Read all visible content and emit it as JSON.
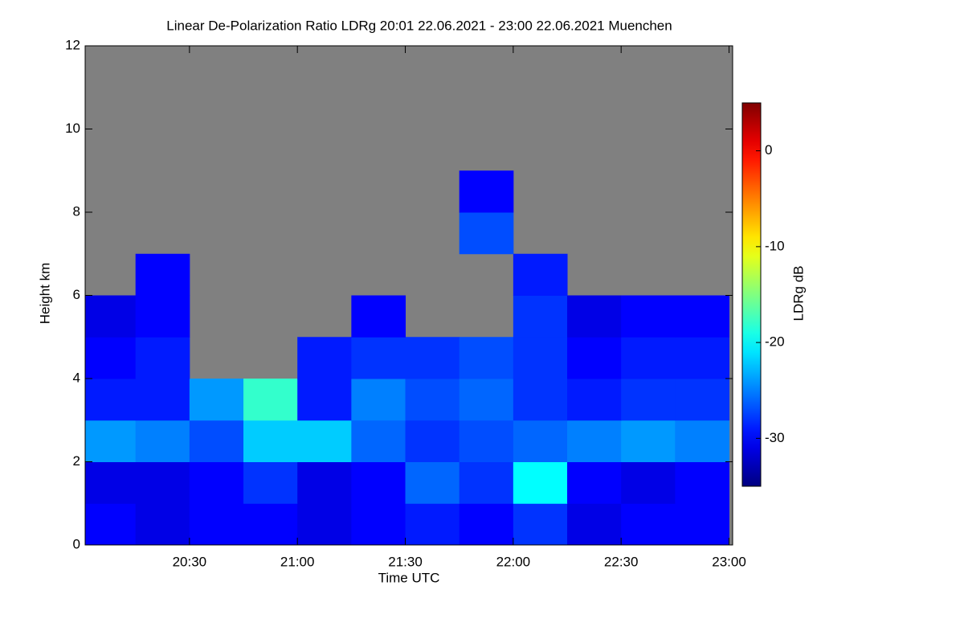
{
  "chart_data": {
    "type": "heatmap",
    "title": "Linear De-Polarization Ratio LDRg   20:01 22.06.2021 - 23:00 22.06.2021 Muenchen",
    "x_label": "Time UTC",
    "y_label": "Height km",
    "colorbar_label": "LDRg dB",
    "colormap": "jet",
    "no_data_color": "#808080",
    "x_bins": [
      "20:00",
      "20:15",
      "20:30",
      "20:45",
      "21:00",
      "21:15",
      "21:30",
      "21:45",
      "22:00",
      "22:15",
      "22:30",
      "22:45",
      "23:00"
    ],
    "y_bins": [
      0,
      1,
      2,
      3,
      4,
      5,
      6,
      7,
      8,
      9,
      10,
      11,
      12
    ],
    "values": [
      [
        -30,
        -31,
        -30,
        -30,
        -31,
        -30,
        -29,
        -30,
        -28,
        -31,
        -30,
        -30
      ],
      [
        -31,
        -31,
        -30,
        -28,
        -31,
        -30,
        -26,
        -28,
        -20,
        -30,
        -31,
        -30
      ],
      [
        -24,
        -25,
        -27,
        -22,
        -22,
        -26,
        -28,
        -27,
        -26,
        -25,
        -24,
        -25
      ],
      [
        -29,
        -29,
        -24,
        -18,
        -29,
        -25,
        -27,
        -26,
        -28,
        -29,
        -28,
        -28
      ],
      [
        -30,
        -29,
        null,
        null,
        -29,
        -28,
        -28,
        -27,
        -28,
        -30,
        -29,
        -29
      ],
      [
        -31,
        -30,
        null,
        null,
        null,
        -30,
        null,
        null,
        -28,
        -31,
        -30,
        -30
      ],
      [
        null,
        -30,
        null,
        null,
        null,
        null,
        null,
        null,
        -29,
        null,
        null,
        null
      ],
      [
        null,
        null,
        null,
        null,
        null,
        null,
        null,
        -27,
        null,
        null,
        null,
        null
      ],
      [
        null,
        null,
        null,
        null,
        null,
        null,
        null,
        -30,
        null,
        null,
        null,
        null
      ],
      [
        null,
        null,
        null,
        null,
        null,
        null,
        null,
        null,
        null,
        null,
        null,
        null
      ],
      [
        null,
        null,
        null,
        null,
        null,
        null,
        null,
        null,
        null,
        null,
        null,
        null
      ],
      [
        null,
        null,
        null,
        null,
        null,
        null,
        null,
        null,
        null,
        null,
        null,
        null
      ]
    ],
    "xlim": [
      "20:01",
      "23:01"
    ],
    "xticks": [
      "20:30",
      "21:00",
      "21:30",
      "22:00",
      "22:30",
      "23:00"
    ],
    "ylim": [
      0,
      12
    ],
    "yticks": [
      0,
      2,
      4,
      6,
      8,
      10,
      12
    ],
    "clim": [
      -35,
      5
    ],
    "cticks": [
      -30,
      -20,
      -10,
      0
    ]
  }
}
